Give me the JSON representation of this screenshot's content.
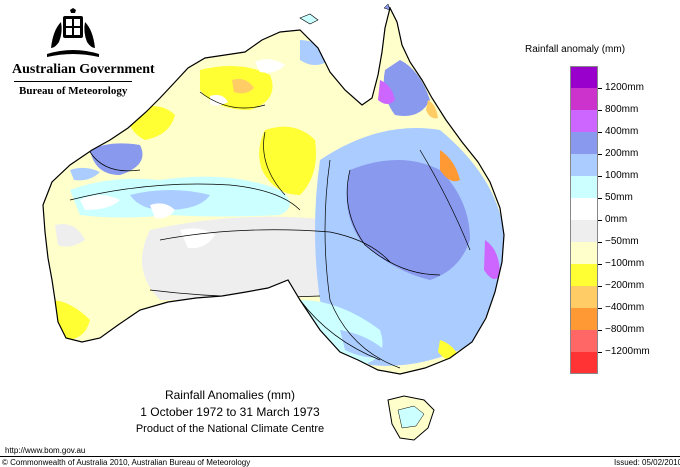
{
  "header": {
    "government": "Australian Government",
    "bureau": "Bureau of Meteorology"
  },
  "map": {
    "title": "Rainfall Anomalies (mm)",
    "period": "1 October 1972 to 31 March 1973",
    "product": "Product of the National Climate Centre"
  },
  "legend": {
    "title": "Rainfall anomaly (mm)",
    "bins": [
      {
        "color": "#9900cc"
      },
      {
        "color": "#cc33cc"
      },
      {
        "color": "#cc66ff"
      },
      {
        "color": "#8899ee"
      },
      {
        "color": "#aaccff"
      },
      {
        "color": "#ccffff"
      },
      {
        "color": "#ffffff"
      },
      {
        "color": "#eeeeee"
      },
      {
        "color": "#ffffcc"
      },
      {
        "color": "#ffff33"
      },
      {
        "color": "#ffcc66"
      },
      {
        "color": "#ff9933"
      },
      {
        "color": "#ff6666"
      },
      {
        "color": "#ff3333"
      }
    ],
    "labels": [
      "1200mm",
      "800mm",
      "400mm",
      "200mm",
      "100mm",
      "50mm",
      "0mm",
      "−50mm",
      "−100mm",
      "−200mm",
      "−400mm",
      "−800mm",
      "−1200mm"
    ]
  },
  "footer": {
    "url": "http://www.bom.gov.au",
    "copyright": "© Commonwealth of Australia 2010, Australian Bureau of Meteorology",
    "issued": "Issued: 05/02/2010"
  }
}
